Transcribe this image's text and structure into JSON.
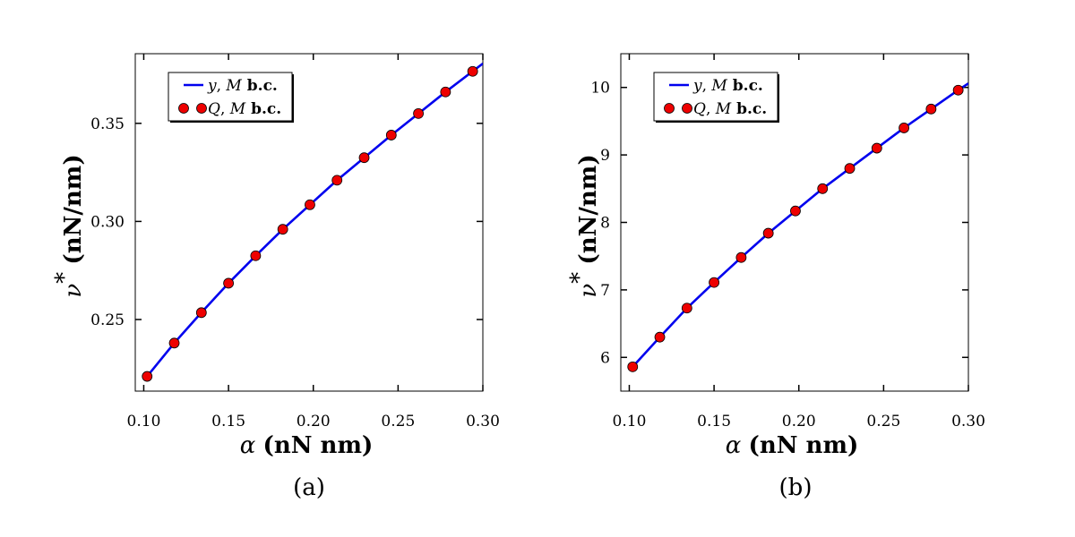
{
  "chart_data": [
    {
      "type": "line",
      "panel_label": "(a)",
      "xlabel": {
        "symbol": "α",
        "units": "(nN nm)"
      },
      "ylabel": {
        "symbol": "ν",
        "superscript": "*",
        "units": "(nN/nm)"
      },
      "xlim": [
        0.095,
        0.3
      ],
      "ylim": [
        0.2135,
        0.3855
      ],
      "xticks": [
        {
          "value": 0.1,
          "label": "0.10"
        },
        {
          "value": 0.15,
          "label": "0.15"
        },
        {
          "value": 0.2,
          "label": "0.20"
        },
        {
          "value": 0.25,
          "label": "0.25"
        },
        {
          "value": 0.3,
          "label": "0.30"
        }
      ],
      "yticks": [
        {
          "value": 0.25,
          "label": "0.25"
        },
        {
          "value": 0.3,
          "label": "0.30"
        },
        {
          "value": 0.35,
          "label": "0.35"
        }
      ],
      "series": [
        {
          "name": "y, M b.c.",
          "legend": {
            "sym": "y",
            "sep": ", ",
            "sym2": "M",
            "rest": " b.c."
          },
          "kind": "line",
          "color": "#0000ee",
          "x": [
            0.102,
            0.118,
            0.134,
            0.15,
            0.166,
            0.182,
            0.198,
            0.214,
            0.23,
            0.246,
            0.262,
            0.278,
            0.294,
            0.3
          ],
          "y": [
            0.221,
            0.238,
            0.2535,
            0.2685,
            0.2825,
            0.296,
            0.3085,
            0.321,
            0.3325,
            0.344,
            0.355,
            0.366,
            0.3765,
            0.3805
          ]
        },
        {
          "name": "Q, M b.c.",
          "legend": {
            "sym": "Q",
            "sep": ", ",
            "sym2": "M",
            "rest": " b.c."
          },
          "kind": "scatter",
          "color": "#ee0000",
          "x": [
            0.102,
            0.118,
            0.134,
            0.15,
            0.166,
            0.182,
            0.198,
            0.214,
            0.23,
            0.246,
            0.262,
            0.278,
            0.294
          ],
          "y": [
            0.221,
            0.238,
            0.2535,
            0.2685,
            0.2825,
            0.296,
            0.3085,
            0.321,
            0.3325,
            0.344,
            0.355,
            0.366,
            0.3765
          ]
        }
      ],
      "legend_position": "top-left"
    },
    {
      "type": "line",
      "panel_label": "(b)",
      "xlabel": {
        "symbol": "α",
        "units": "(nN nm)"
      },
      "ylabel": {
        "symbol": "ν",
        "superscript": "*",
        "units": "(nN/nm)"
      },
      "xlim": [
        0.095,
        0.3
      ],
      "ylim": [
        5.5,
        10.5
      ],
      "xticks": [
        {
          "value": 0.1,
          "label": "0.10"
        },
        {
          "value": 0.15,
          "label": "0.15"
        },
        {
          "value": 0.2,
          "label": "0.20"
        },
        {
          "value": 0.25,
          "label": "0.25"
        },
        {
          "value": 0.3,
          "label": "0.30"
        }
      ],
      "yticks": [
        {
          "value": 6,
          "label": "6"
        },
        {
          "value": 7,
          "label": "7"
        },
        {
          "value": 8,
          "label": "8"
        },
        {
          "value": 9,
          "label": "9"
        },
        {
          "value": 10,
          "label": "10"
        }
      ],
      "series": [
        {
          "name": "y, M b.c.",
          "legend": {
            "sym": "y",
            "sep": ", ",
            "sym2": "M",
            "rest": " b.c."
          },
          "kind": "line",
          "color": "#0000ee",
          "x": [
            0.102,
            0.118,
            0.134,
            0.15,
            0.166,
            0.182,
            0.198,
            0.214,
            0.23,
            0.246,
            0.262,
            0.278,
            0.294,
            0.3
          ],
          "y": [
            5.86,
            6.3,
            6.73,
            7.11,
            7.48,
            7.84,
            8.17,
            8.5,
            8.8,
            9.1,
            9.4,
            9.68,
            9.96,
            10.06
          ]
        },
        {
          "name": "Q, M b.c.",
          "legend": {
            "sym": "Q",
            "sep": ", ",
            "sym2": "M",
            "rest": " b.c."
          },
          "kind": "scatter",
          "color": "#ee0000",
          "x": [
            0.102,
            0.118,
            0.134,
            0.15,
            0.166,
            0.182,
            0.198,
            0.214,
            0.23,
            0.246,
            0.262,
            0.278,
            0.294
          ],
          "y": [
            5.86,
            6.3,
            6.73,
            7.11,
            7.48,
            7.84,
            8.17,
            8.5,
            8.8,
            9.1,
            9.4,
            9.68,
            9.96
          ]
        }
      ],
      "legend_position": "top-left"
    }
  ]
}
